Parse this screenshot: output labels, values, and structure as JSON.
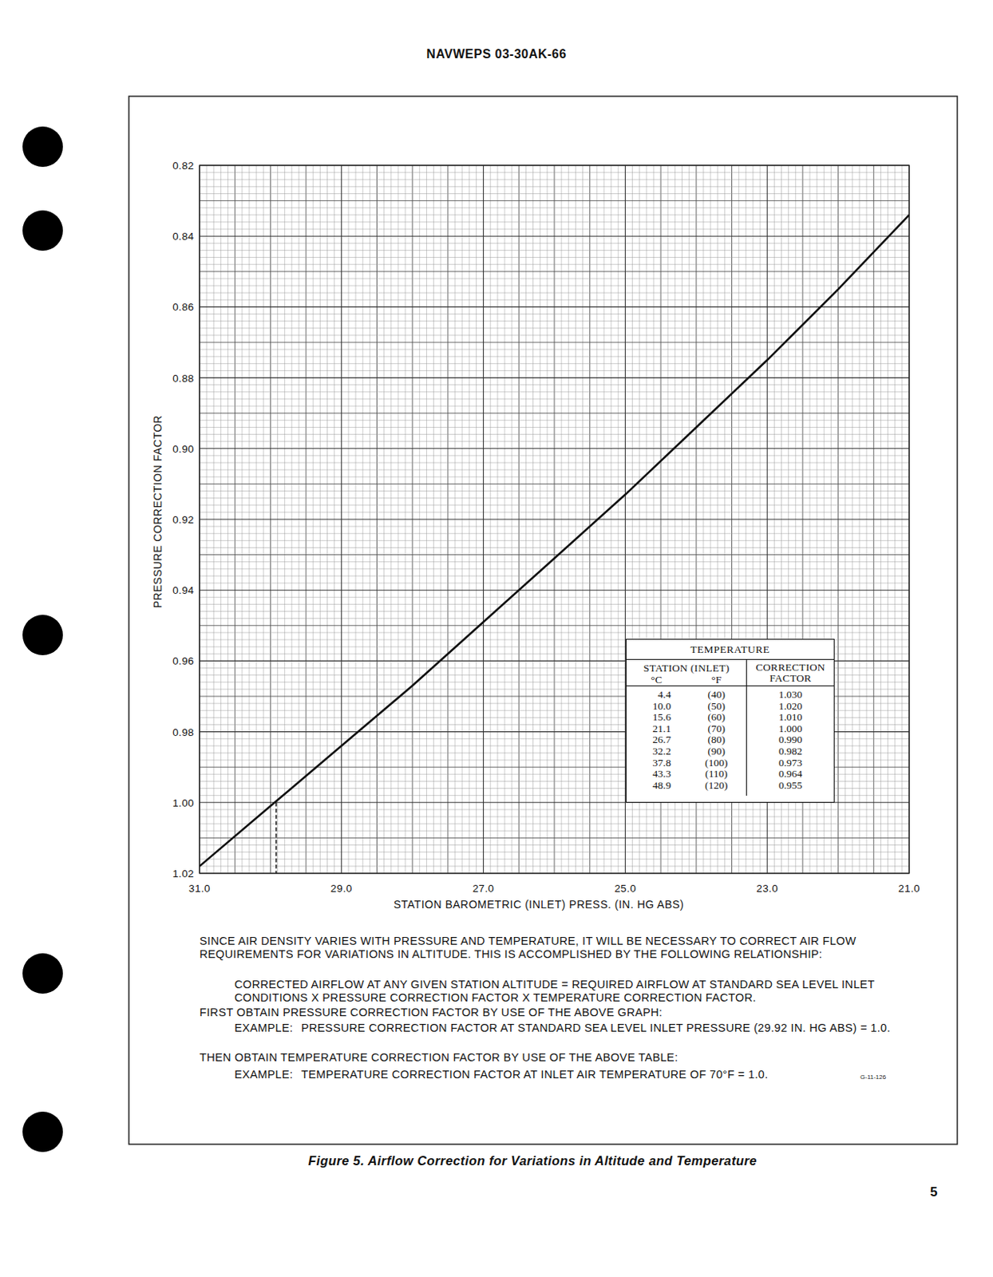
{
  "header": {
    "code": "NAVWEPS 03-30AK-66"
  },
  "chart_data": {
    "type": "line",
    "x_label": "STATION BAROMETRIC (INLET) PRESS. (IN. HG ABS)",
    "y_label": "PRESSURE CORRECTION FACTOR",
    "x": [
      31,
      30,
      29,
      28,
      27,
      26,
      25,
      24,
      23,
      22,
      21
    ],
    "values": [
      1.018,
      1.001,
      0.984,
      0.967,
      0.949,
      0.931,
      0.913,
      0.894,
      0.875,
      0.855,
      0.834
    ],
    "color": "#111111",
    "xlim": [
      31,
      21
    ],
    "ylim": [
      1.02,
      0.82
    ],
    "xticks": [
      {
        "value": 31,
        "label": "31.0"
      },
      {
        "value": 29,
        "label": "29.0"
      },
      {
        "value": 27,
        "label": "27.0"
      },
      {
        "value": 25,
        "label": "25.0"
      },
      {
        "value": 23,
        "label": "23.0"
      },
      {
        "value": 21,
        "label": "21.0"
      }
    ],
    "yticks": [
      0.82,
      0.84,
      0.86,
      0.88,
      {
        "value": 0.9,
        "label": "0.90"
      },
      0.92,
      0.94,
      0.96,
      0.98,
      {
        "value": 1.0,
        "label": "1.00"
      },
      1.02
    ],
    "grid": true,
    "reference_line": {
      "x": 29.92,
      "y": 1.0
    }
  },
  "temperature_table": {
    "title": "TEMPERATURE",
    "columns": {
      "station": "STATION (INLET)",
      "celsius": "°C",
      "fahrenheit": "°F",
      "factor": "CORRECTION FACTOR"
    },
    "rows": [
      [
        "4.4",
        "(40)",
        "1.030"
      ],
      [
        "10.0",
        "(50)",
        "1.020"
      ],
      [
        "15.6",
        "(60)",
        "1.010"
      ],
      [
        "21.1",
        "(70)",
        "1.000"
      ],
      [
        "26.7",
        "(80)",
        "0.990"
      ],
      [
        "32.2",
        "(90)",
        "0.982"
      ],
      [
        "37.8",
        "(100)",
        "0.973"
      ],
      [
        "43.3",
        "(110)",
        "0.964"
      ],
      [
        "48.9",
        "(120)",
        "0.955"
      ]
    ]
  },
  "text": {
    "intro": "SINCE AIR DENSITY VARIES WITH PRESSURE AND TEMPERATURE, IT WILL BE NECESSARY TO CORRECT AIR FLOW REQUIREMENTS FOR VARIATIONS IN ALTITUDE.  THIS IS ACCOMPLISHED BY THE FOLLOWING RELATIONSHIP:",
    "relationship": "CORRECTED AIRFLOW AT ANY GIVEN STATION ALTITUDE = REQUIRED AIRFLOW AT STANDARD SEA LEVEL INLET CONDITIONS X PRESSURE CORRECTION FACTOR X TEMPERATURE CORRECTION FACTOR.",
    "step1": "FIRST OBTAIN PRESSURE CORRECTION FACTOR BY USE OF THE ABOVE GRAPH:",
    "example1": {
      "label": "EXAMPLE:",
      "text": "PRESSURE CORRECTION FACTOR AT STANDARD SEA LEVEL INLET PRESSURE (29.92 IN. HG ABS) = 1.0."
    },
    "step2": "THEN OBTAIN TEMPERATURE CORRECTION FACTOR BY USE OF THE ABOVE TABLE:",
    "example2": {
      "label": "EXAMPLE:",
      "text": "TEMPERATURE CORRECTION FACTOR AT INLET AIR TEMPERATURE OF 70°F = 1.0."
    }
  },
  "drawing_code": "G-11-126",
  "figure_caption": "Figure 5.  Airflow Correction for Variations in Altitude and Temperature",
  "page_number": "5"
}
